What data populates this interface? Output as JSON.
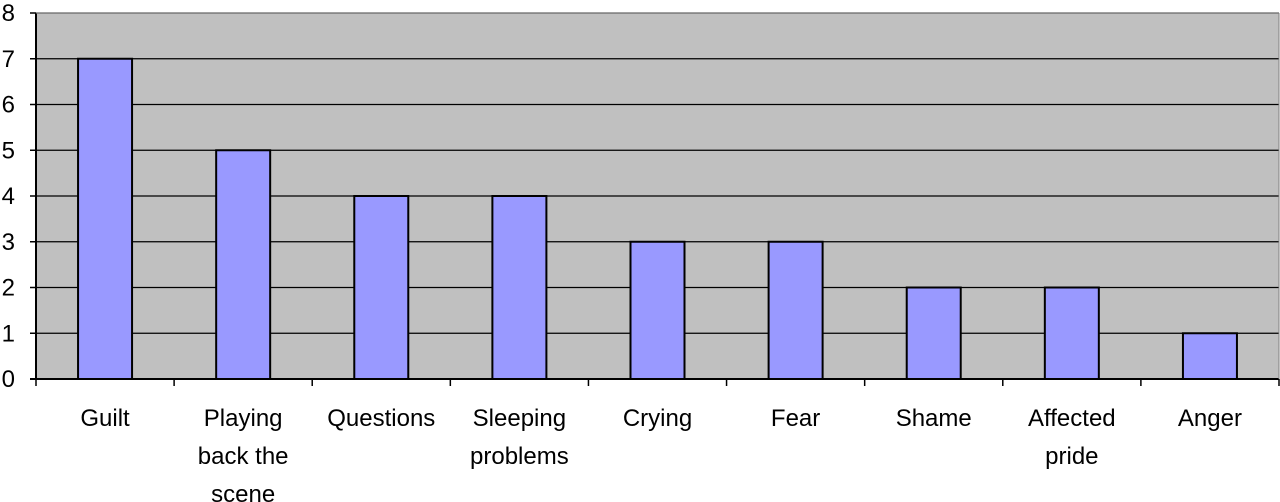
{
  "chart_data": {
    "type": "bar",
    "title": "",
    "xlabel": "",
    "ylabel": "",
    "categories": [
      "Guilt",
      "Playing back the scene",
      "Questions",
      "Sleeping problems",
      "Crying",
      "Fear",
      "Shame",
      "Affected pride",
      "Anger"
    ],
    "category_lines": [
      [
        "Guilt"
      ],
      [
        "Playing",
        "back the",
        "scene"
      ],
      [
        "Questions"
      ],
      [
        "Sleeping",
        "problems"
      ],
      [
        "Crying"
      ],
      [
        "Fear"
      ],
      [
        "Shame"
      ],
      [
        "Affected",
        "pride"
      ],
      [
        "Anger"
      ]
    ],
    "values": [
      7,
      5,
      4,
      4,
      3,
      3,
      2,
      2,
      1
    ],
    "ylim": [
      0,
      8
    ],
    "yticks": [
      "0",
      "1",
      "2",
      "3",
      "4",
      "5",
      "6",
      "7",
      "8"
    ],
    "grid": true,
    "legend": "none",
    "colors": {
      "bar_fill": "#9999ff",
      "bar_stroke": "#000000",
      "plot_bg": "#c0c0c0",
      "grid": "#000000"
    }
  }
}
